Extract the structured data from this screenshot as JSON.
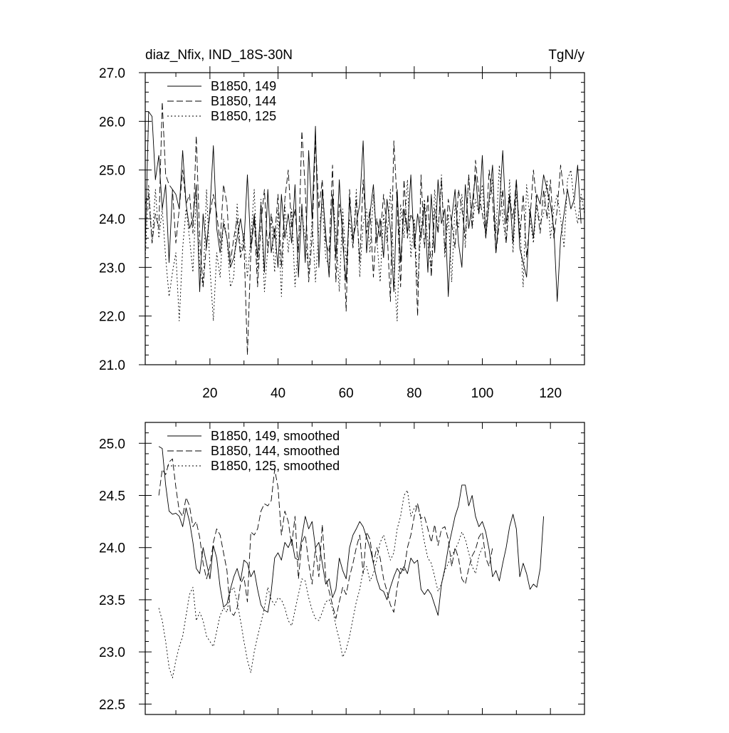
{
  "chart_data": [
    {
      "type": "line",
      "title_left": "diaz_Nfix, IND_18S-30N",
      "title_right": "TgN/y",
      "xlim": [
        1,
        130
      ],
      "ylim": [
        21.0,
        27.0
      ],
      "x_ticks": [
        20,
        40,
        60,
        80,
        100,
        120
      ],
      "y_ticks": [
        21.0,
        22.0,
        23.0,
        24.0,
        25.0,
        26.0,
        27.0
      ],
      "x_tick_labels": [
        "20",
        "40",
        "60",
        "80",
        "100",
        "120"
      ],
      "y_tick_labels": [
        "21.0",
        "22.0",
        "23.0",
        "24.0",
        "25.0",
        "26.0",
        "27.0"
      ],
      "legend_position": "top-left",
      "x_start": 1,
      "series": [
        {
          "name": "B1850, 149",
          "style": "solid",
          "values": [
            23.4,
            26.2,
            26.1,
            24.8,
            25.3,
            24.2,
            24.7,
            23.1,
            24.6,
            24.5,
            24.2,
            25.4,
            24.3,
            23.8,
            24.0,
            24.7,
            22.5,
            24.1,
            23.4,
            24.2,
            25.5,
            23.8,
            23.3,
            23.9,
            23.6,
            23.0,
            23.2,
            23.6,
            24.0,
            23.5,
            24.9,
            23.4,
            24.1,
            23.2,
            24.3,
            22.9,
            24.6,
            23.3,
            23.8,
            23.0,
            24.5,
            23.6,
            24.1,
            23.5,
            24.7,
            22.8,
            24.3,
            23.1,
            25.4,
            24.0,
            25.9,
            23.0,
            24.6,
            23.7,
            22.8,
            24.5,
            23.2,
            24.8,
            23.5,
            22.7,
            24.4,
            23.6,
            23.9,
            24.3,
            25.6,
            23.3,
            24.1,
            24.7,
            23.5,
            24.0,
            23.2,
            24.4,
            23.8,
            22.5,
            24.6,
            23.1,
            24.2,
            23.7,
            24.9,
            23.4,
            24.1,
            23.6,
            24.3,
            22.9,
            24.5,
            23.3,
            24.8,
            23.9,
            24.2,
            22.4,
            24.0,
            24.6,
            23.5,
            23.0,
            24.7,
            23.8,
            24.3,
            24.9,
            24.1,
            25.3,
            23.6,
            24.4,
            25.1,
            23.3,
            24.2,
            25.4,
            23.9,
            24.5,
            23.5,
            24.8,
            23.4,
            23.1,
            22.8,
            24.2,
            23.6,
            24.5,
            24.3,
            24.9,
            24.6,
            24.3,
            23.8,
            22.3,
            23.6,
            24.1,
            24.6,
            24.2,
            24.4,
            25.1,
            23.9
          ]
        },
        {
          "name": "B1850, 144",
          "style": "dashed",
          "values": [
            24.3,
            24.5,
            23.5,
            24.1,
            23.8,
            26.4,
            24.9,
            24.7,
            24.6,
            23.5,
            24.2,
            25.0,
            24.3,
            24.5,
            23.7,
            25.7,
            23.6,
            22.6,
            23.5,
            24.1,
            24.5,
            24.1,
            23.5,
            24.7,
            24.3,
            23.1,
            23.6,
            24.0,
            23.2,
            23.5,
            21.2,
            23.3,
            24.0,
            22.6,
            23.9,
            24.6,
            23.3,
            24.1,
            23.6,
            24.5,
            23.0,
            24.4,
            25.0,
            23.8,
            24.2,
            23.3,
            25.8,
            24.6,
            22.7,
            23.6,
            25.6,
            24.2,
            24.8,
            23.5,
            23.3,
            25.1,
            22.7,
            24.3,
            23.9,
            22.1,
            24.6,
            23.4,
            24.4,
            23.1,
            24.8,
            23.7,
            24.2,
            22.8,
            24.0,
            23.6,
            24.5,
            23.8,
            22.3,
            25.6,
            24.3,
            22.6,
            24.8,
            23.6,
            24.1,
            23.9,
            22.0,
            24.9,
            23.4,
            24.5,
            22.8,
            24.2,
            23.7,
            24.8,
            23.3,
            24.4,
            23.9,
            23.4,
            24.6,
            24.2,
            23.6,
            24.9,
            23.8,
            25.2,
            24.5,
            24.1,
            23.7,
            25.0,
            24.4,
            23.3,
            23.9,
            24.6,
            23.5,
            24.4,
            24.0,
            24.8,
            23.6,
            24.5,
            23.2,
            24.0,
            25.0,
            24.3,
            23.7,
            24.6,
            24.0,
            24.8,
            23.6,
            24.2,
            25.1,
            24.5
          ]
        },
        {
          "name": "B1850, 125",
          "style": "dotted",
          "values": [
            23.2,
            24.7,
            23.5,
            24.6,
            23.6,
            24.2,
            23.2,
            22.4,
            22.9,
            23.3,
            21.9,
            23.4,
            24.2,
            23.6,
            22.9,
            24.5,
            23.0,
            22.6,
            24.6,
            23.0,
            21.9,
            23.3,
            22.8,
            24.0,
            23.6,
            22.6,
            22.8,
            24.3,
            23.3,
            23.7,
            22.8,
            23.6,
            24.6,
            22.9,
            24.4,
            22.5,
            23.4,
            24.0,
            22.9,
            24.2,
            22.4,
            24.3,
            23.3,
            24.2,
            22.6,
            23.5,
            24.1,
            23.6,
            22.9,
            24.0,
            22.7,
            23.8,
            24.3,
            23.2,
            23.0,
            24.5,
            23.7,
            22.5,
            24.2,
            23.1,
            24.0,
            23.4,
            24.6,
            22.8,
            23.9,
            24.2,
            23.3,
            24.5,
            23.6,
            22.7,
            24.1,
            23.5,
            24.6,
            23.0,
            21.9,
            24.3,
            23.6,
            24.8,
            23.2,
            24.0,
            22.6,
            23.8,
            24.4,
            23.5,
            22.9,
            24.6,
            23.7,
            24.9,
            23.2,
            24.1,
            22.7,
            24.3,
            23.8,
            24.5,
            23.4,
            24.9,
            23.8,
            24.4,
            24.1,
            24.7,
            23.6,
            24.3,
            24.8,
            23.7,
            25.1,
            24.0,
            23.5,
            24.8,
            23.3,
            24.5,
            23.9,
            22.6,
            24.7,
            24.0,
            23.5,
            24.3,
            23.9,
            24.1,
            24.8,
            23.6,
            24.2,
            24.5,
            24.0,
            23.4,
            24.8,
            25.0,
            24.3,
            23.9,
            24.5,
            24.1
          ]
        }
      ]
    },
    {
      "type": "line",
      "xlim": [
        1,
        130
      ],
      "ylim": [
        22.4,
        25.2
      ],
      "y_ticks": [
        22.5,
        23.0,
        23.5,
        24.0,
        24.5,
        25.0
      ],
      "y_tick_labels": [
        "22.5",
        "23.0",
        "23.5",
        "24.0",
        "24.5",
        "25.0"
      ],
      "x_ticks": [
        20,
        40,
        60,
        80,
        100,
        120
      ],
      "legend_position": "top-left",
      "x_start": 5,
      "series": [
        {
          "name": "B1850, 149, smoothed",
          "style": "solid",
          "values": [
            24.97,
            24.95,
            24.6,
            24.35,
            24.32,
            24.33,
            24.3,
            24.2,
            24.38,
            24.25,
            24.05,
            23.8,
            23.75,
            24.0,
            23.85,
            23.7,
            24.02,
            23.9,
            23.62,
            23.43,
            23.46,
            23.6,
            23.72,
            23.8,
            23.68,
            23.88,
            23.85,
            23.72,
            23.78,
            23.6,
            23.45,
            23.4,
            23.38,
            23.58,
            23.9,
            23.95,
            23.88,
            24.05,
            24.0,
            24.08,
            23.9,
            23.88,
            24.1,
            24.3,
            24.18,
            24.25,
            24.0,
            24.05,
            23.85,
            23.65,
            23.7,
            23.52,
            23.6,
            23.9,
            23.78,
            23.7,
            24.0,
            24.12,
            24.18,
            24.25,
            24.2,
            24.1,
            24.0,
            23.85,
            23.7,
            23.6,
            23.58,
            23.5,
            23.62,
            23.72,
            23.8,
            23.75,
            23.82,
            23.75,
            23.9,
            23.85,
            23.88,
            23.6,
            23.55,
            23.6,
            23.55,
            23.45,
            23.35,
            23.65,
            23.8,
            24.0,
            24.15,
            24.3,
            24.4,
            24.6,
            24.6,
            24.4,
            24.5,
            24.3,
            24.2,
            24.25,
            24.15,
            23.98,
            23.72,
            23.78,
            23.68,
            23.85,
            24.0,
            24.2,
            24.32,
            24.18,
            23.72,
            23.85,
            23.75,
            23.6,
            23.65,
            23.62,
            23.8,
            24.3
          ]
        },
        {
          "name": "B1850, 144, smoothed",
          "style": "dashed",
          "values": [
            24.5,
            24.75,
            24.7,
            24.82,
            24.85,
            24.58,
            24.35,
            24.3,
            24.48,
            24.4,
            24.2,
            24.25,
            24.1,
            23.85,
            23.7,
            23.82,
            24.05,
            24.18,
            24.12,
            23.95,
            23.78,
            23.38,
            23.35,
            23.42,
            23.65,
            23.72,
            23.48,
            24.15,
            24.12,
            24.18,
            24.35,
            24.42,
            24.4,
            24.45,
            24.75,
            24.58,
            24.12,
            24.35,
            24.25,
            24.02,
            24.3,
            23.7,
            24.05,
            24.12,
            23.85,
            23.65,
            24.0,
            23.72,
            24.22,
            23.72,
            23.58,
            23.45,
            23.32,
            23.48,
            23.62,
            23.55,
            23.72,
            23.85,
            24.0,
            24.12,
            23.75,
            24.15,
            24.08,
            23.85,
            24.0,
            23.9,
            23.7,
            23.58,
            23.45,
            23.38,
            23.62,
            23.8,
            23.78,
            24.0,
            24.12,
            24.3,
            24.42,
            24.28,
            24.3,
            24.18,
            24.05,
            24.22,
            24.02,
            24.18,
            24.2,
            24.08,
            23.82,
            24.0,
            23.9,
            23.7,
            23.65,
            23.8,
            23.92,
            23.98,
            24.1,
            24.15,
            23.9,
            23.82,
            24.0
          ]
        },
        {
          "name": "B1850, 125, smoothed",
          "style": "dotted",
          "values": [
            23.42,
            23.3,
            23.1,
            22.85,
            22.75,
            22.92,
            23.05,
            23.15,
            23.35,
            23.55,
            23.62,
            23.3,
            23.38,
            23.3,
            23.15,
            23.1,
            23.05,
            23.2,
            23.35,
            23.42,
            23.38,
            23.58,
            23.62,
            23.48,
            23.3,
            23.1,
            22.92,
            22.8,
            23.0,
            23.15,
            23.28,
            23.42,
            23.62,
            23.5,
            23.45,
            23.52,
            23.5,
            23.42,
            23.3,
            23.25,
            23.4,
            23.55,
            23.7,
            23.68,
            23.52,
            23.4,
            23.32,
            23.3,
            23.38,
            23.48,
            23.5,
            23.42,
            23.25,
            23.12,
            22.95,
            23.02,
            23.15,
            23.32,
            23.48,
            23.6,
            23.78,
            23.82,
            23.68,
            23.75,
            23.88,
            24.05,
            24.12,
            24.0,
            23.88,
            23.95,
            24.18,
            24.3,
            24.5,
            24.55,
            24.3,
            24.38,
            24.42,
            24.25,
            24.05,
            23.9,
            23.85,
            23.72,
            23.58,
            23.65,
            23.78,
            23.85,
            23.92,
            23.98,
            24.05,
            24.15,
            24.08,
            23.95,
            23.82,
            23.75,
            23.92,
            24.0
          ]
        }
      ]
    }
  ]
}
